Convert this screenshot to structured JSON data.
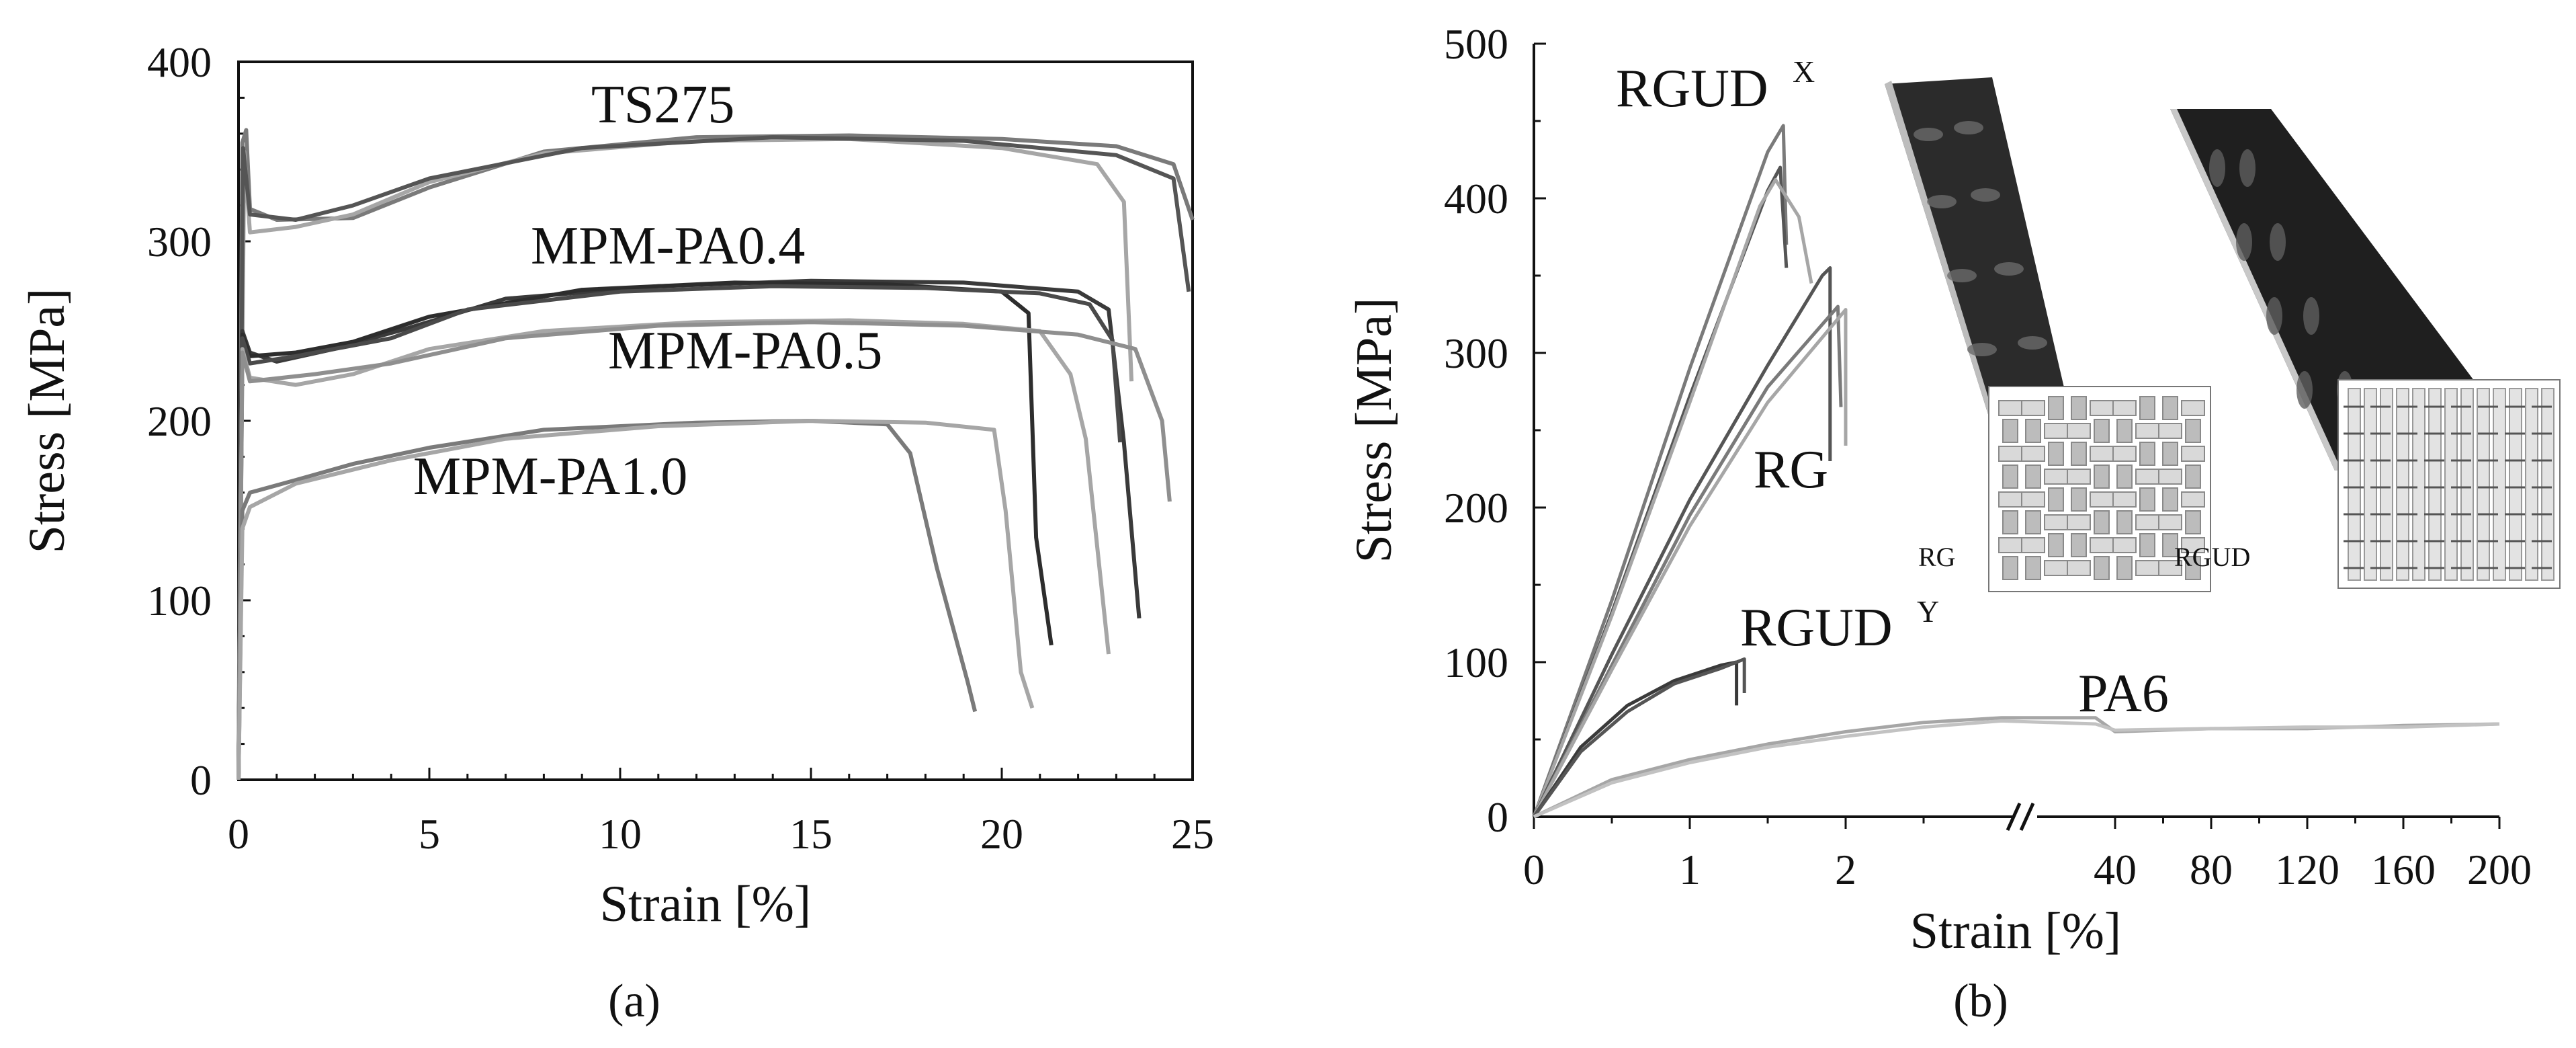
{
  "colors": {
    "dark": "#3a3a3a",
    "mid": "#7a7a7a",
    "light": "#a6a6a6",
    "pale": "#c2c2c2",
    "axis": "#111111"
  },
  "chart_data": [
    {
      "type": "line",
      "panel": "(a)",
      "xlabel": "Strain [%]",
      "ylabel": "Stress [MPa]",
      "xlim": [
        0,
        25
      ],
      "ylim": [
        0,
        400
      ],
      "xticks": [
        "0",
        "5",
        "10",
        "15",
        "20",
        "25"
      ],
      "yticks": [
        "0",
        "100",
        "200",
        "300",
        "400"
      ],
      "grid": false,
      "annotations": [
        "TS275",
        "MPM-PA0.4",
        "MPM-PA0.5",
        "MPM-PA1.0"
      ],
      "series": [
        {
          "name": "TS275",
          "color": "#7a7a7a",
          "points": [
            [
              0,
              0
            ],
            [
              0.1,
              355
            ],
            [
              0.2,
              362
            ],
            [
              0.3,
              318
            ],
            [
              1,
              312
            ],
            [
              3,
              313
            ],
            [
              5,
              330
            ],
            [
              8,
              350
            ],
            [
              12,
              358
            ],
            [
              16,
              359
            ],
            [
              20,
              357
            ],
            [
              23,
              353
            ],
            [
              24.5,
              343
            ],
            [
              25,
              312
            ]
          ]
        },
        {
          "name": "TS275",
          "color": "#a6a6a6",
          "points": [
            [
              0,
              0
            ],
            [
              0.15,
              350
            ],
            [
              0.3,
              305
            ],
            [
              1.5,
              308
            ],
            [
              3,
              315
            ],
            [
              5,
              333
            ],
            [
              8,
              349
            ],
            [
              12,
              356
            ],
            [
              16,
              357
            ],
            [
              20,
              352
            ],
            [
              22.5,
              343
            ],
            [
              23.2,
              322
            ],
            [
              23.4,
              222
            ]
          ]
        },
        {
          "name": "TS275",
          "color": "#555555",
          "points": [
            [
              0,
              0
            ],
            [
              0.12,
              352
            ],
            [
              0.3,
              315
            ],
            [
              1.5,
              312
            ],
            [
              3,
              320
            ],
            [
              5,
              335
            ],
            [
              9,
              352
            ],
            [
              14,
              358
            ],
            [
              19,
              356
            ],
            [
              23,
              348
            ],
            [
              24.5,
              335
            ],
            [
              24.9,
              272
            ]
          ]
        },
        {
          "name": "MPM-PA0.4",
          "color": "#3a3a3a",
          "points": [
            [
              0,
              0
            ],
            [
              0.1,
              250
            ],
            [
              0.3,
              238
            ],
            [
              1,
              233
            ],
            [
              2.5,
              240
            ],
            [
              4.5,
              252
            ],
            [
              7,
              268
            ],
            [
              11,
              275
            ],
            [
              15,
              278
            ],
            [
              19,
              277
            ],
            [
              22,
              272
            ],
            [
              22.8,
              262
            ],
            [
              23.2,
              188
            ],
            [
              23.6,
              90
            ]
          ]
        },
        {
          "name": "MPM-PA0.4",
          "color": "#2d2d2d",
          "points": [
            [
              0,
              0
            ],
            [
              0.1,
              248
            ],
            [
              0.3,
              236
            ],
            [
              1.5,
              238
            ],
            [
              3,
              244
            ],
            [
              5,
              258
            ],
            [
              9,
              273
            ],
            [
              13,
              277
            ],
            [
              17,
              276
            ],
            [
              20,
              272
            ],
            [
              20.7,
              260
            ],
            [
              20.9,
              135
            ],
            [
              21.3,
              75
            ]
          ]
        },
        {
          "name": "MPM-PA0.4",
          "color": "#4a4a4a",
          "points": [
            [
              0,
              0
            ],
            [
              0.1,
              246
            ],
            [
              0.3,
              232
            ],
            [
              1.5,
              236
            ],
            [
              4,
              246
            ],
            [
              6,
              262
            ],
            [
              10,
              272
            ],
            [
              14,
              275
            ],
            [
              18,
              274
            ],
            [
              21,
              271
            ],
            [
              22.3,
              265
            ],
            [
              22.9,
              245
            ],
            [
              23.1,
              188
            ]
          ]
        },
        {
          "name": "MPM-PA0.5",
          "color": "#a6a6a6",
          "points": [
            [
              0,
              0
            ],
            [
              0.1,
              240
            ],
            [
              0.3,
              224
            ],
            [
              1.5,
              220
            ],
            [
              3,
              226
            ],
            [
              5,
              240
            ],
            [
              8,
              250
            ],
            [
              12,
              255
            ],
            [
              16,
              256
            ],
            [
              19,
              254
            ],
            [
              21,
              250
            ],
            [
              21.8,
              226
            ],
            [
              22.2,
              190
            ],
            [
              22.8,
              70
            ]
          ]
        },
        {
          "name": "MPM-PA0.5",
          "color": "#8f8f8f",
          "points": [
            [
              0,
              0
            ],
            [
              0.1,
              238
            ],
            [
              0.3,
              222
            ],
            [
              2,
              226
            ],
            [
              4,
              232
            ],
            [
              7,
              246
            ],
            [
              11,
              253
            ],
            [
              15,
              255
            ],
            [
              19,
              253
            ],
            [
              22,
              248
            ],
            [
              23.5,
              240
            ],
            [
              24.2,
              200
            ],
            [
              24.4,
              155
            ]
          ]
        },
        {
          "name": "MPM-PA1.0",
          "color": "#7a7a7a",
          "points": [
            [
              0,
              0
            ],
            [
              0.1,
              150
            ],
            [
              0.3,
              160
            ],
            [
              1.5,
              167
            ],
            [
              3,
              176
            ],
            [
              5,
              185
            ],
            [
              8,
              195
            ],
            [
              12,
              199
            ],
            [
              15,
              200
            ],
            [
              17,
              198
            ],
            [
              17.6,
              182
            ],
            [
              18.3,
              118
            ],
            [
              19.1,
              55
            ],
            [
              19.3,
              38
            ]
          ]
        },
        {
          "name": "MPM-PA1.0",
          "color": "#a6a6a6",
          "points": [
            [
              0,
              0
            ],
            [
              0.1,
              140
            ],
            [
              0.3,
              152
            ],
            [
              1.5,
              165
            ],
            [
              4,
              178
            ],
            [
              7,
              190
            ],
            [
              11,
              197
            ],
            [
              15,
              200
            ],
            [
              18,
              199
            ],
            [
              19.8,
              195
            ],
            [
              20.1,
              150
            ],
            [
              20.5,
              60
            ],
            [
              20.8,
              40
            ]
          ]
        }
      ]
    },
    {
      "type": "line",
      "panel": "(b)",
      "xlabel": "Strain [%]",
      "ylabel": "Stress [MPa]",
      "ylim": [
        0,
        500
      ],
      "yticks": [
        "0",
        "100",
        "200",
        "300",
        "400",
        "500"
      ],
      "x_scale": "broken: 0–2 % linear, then 40–200 % compressed",
      "xticks": [
        "0",
        "1",
        "2",
        "40",
        "80",
        "120",
        "160",
        "200"
      ],
      "grid": false,
      "annotations": [
        "RGUD",
        "X",
        "RG",
        "RGUD",
        "Y",
        "PA6"
      ],
      "inset_labels": [
        "RG",
        "RGUD"
      ],
      "series": [
        {
          "name": "RGUD",
          "color": "#7a7a7a",
          "points": [
            [
              0,
              0
            ],
            [
              0.5,
              140
            ],
            [
              1.0,
              290
            ],
            [
              1.5,
              430
            ],
            [
              1.6,
              447
            ],
            [
              1.62,
              370
            ]
          ]
        },
        {
          "name": "RGUD",
          "color": "#555555",
          "points": [
            [
              0,
              0
            ],
            [
              0.5,
              132
            ],
            [
              1.0,
              272
            ],
            [
              1.5,
              405
            ],
            [
              1.58,
              420
            ],
            [
              1.62,
              355
            ]
          ]
        },
        {
          "name": "RGUD",
          "color": "#a6a6a6",
          "points": [
            [
              0,
              0
            ],
            [
              0.5,
              130
            ],
            [
              1.0,
              268
            ],
            [
              1.45,
              395
            ],
            [
              1.55,
              412
            ],
            [
              1.7,
              388
            ],
            [
              1.78,
              345
            ]
          ]
        },
        {
          "name": "RG",
          "color": "#555555",
          "points": [
            [
              0,
              0
            ],
            [
              0.5,
              105
            ],
            [
              1.0,
              205
            ],
            [
              1.5,
              292
            ],
            [
              1.85,
              350
            ],
            [
              1.9,
              355
            ],
            [
              1.9,
              230
            ]
          ]
        },
        {
          "name": "RG",
          "color": "#7a7a7a",
          "points": [
            [
              0,
              0
            ],
            [
              0.5,
              98
            ],
            [
              1.0,
              195
            ],
            [
              1.5,
              278
            ],
            [
              1.95,
              330
            ],
            [
              1.97,
              265
            ]
          ]
        },
        {
          "name": "RG",
          "color": "#a6a6a6",
          "points": [
            [
              0,
              0
            ],
            [
              0.5,
              95
            ],
            [
              1.0,
              188
            ],
            [
              1.5,
              268
            ],
            [
              2.0,
              328
            ],
            [
              2.0,
              240
            ]
          ]
        },
        {
          "name": "RGUD",
          "color": "#3a3a3a",
          "points": [
            [
              0,
              0
            ],
            [
              0.3,
              45
            ],
            [
              0.6,
              72
            ],
            [
              0.9,
              88
            ],
            [
              1.2,
              98
            ],
            [
              1.3,
              100
            ],
            [
              1.3,
              72
            ]
          ]
        },
        {
          "name": "RGUD",
          "color": "#555555",
          "points": [
            [
              0,
              0
            ],
            [
              0.3,
              42
            ],
            [
              0.6,
              68
            ],
            [
              0.9,
              86
            ],
            [
              1.2,
              96
            ],
            [
              1.35,
              102
            ],
            [
              1.35,
              80
            ]
          ]
        },
        {
          "name": "PA6",
          "color": "#a6a6a6",
          "points": [
            [
              0,
              0
            ],
            [
              0.5,
              24
            ],
            [
              1.0,
              37
            ],
            [
              1.5,
              47
            ],
            [
              2.0,
              55
            ],
            [
              2.5,
              61
            ],
            [
              3.0,
              64
            ],
            [
              20,
              64
            ],
            [
              40,
              55
            ],
            [
              80,
              57
            ],
            [
              120,
              57
            ],
            [
              160,
              59
            ],
            [
              200,
              60
            ]
          ]
        },
        {
          "name": "PA6",
          "color": "#c2c2c2",
          "points": [
            [
              0,
              0
            ],
            [
              0.5,
              22
            ],
            [
              1.0,
              35
            ],
            [
              1.5,
              45
            ],
            [
              2.0,
              52
            ],
            [
              2.5,
              58
            ],
            [
              3.0,
              62
            ],
            [
              20,
              60
            ],
            [
              40,
              56
            ],
            [
              80,
              57
            ],
            [
              120,
              58
            ],
            [
              160,
              58
            ],
            [
              200,
              60
            ]
          ]
        }
      ]
    }
  ]
}
